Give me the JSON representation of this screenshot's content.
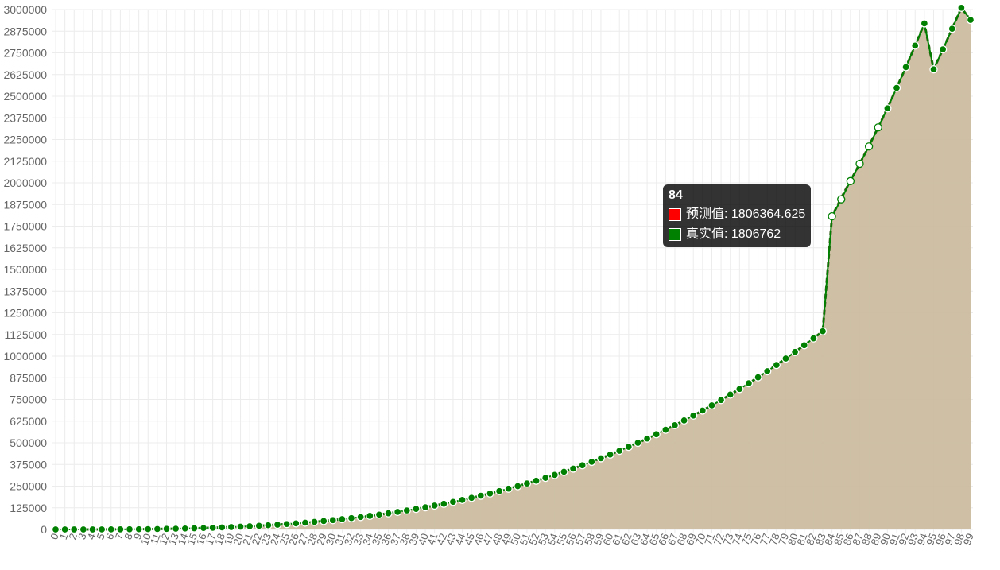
{
  "chart_data": {
    "type": "line",
    "title": "",
    "xlabel": "",
    "ylabel": "",
    "x": [
      0,
      1,
      2,
      3,
      4,
      5,
      6,
      7,
      8,
      9,
      10,
      11,
      12,
      13,
      14,
      15,
      16,
      17,
      18,
      19,
      20,
      21,
      22,
      23,
      24,
      25,
      26,
      27,
      28,
      29,
      30,
      31,
      32,
      33,
      34,
      35,
      36,
      37,
      38,
      39,
      40,
      41,
      42,
      43,
      44,
      45,
      46,
      47,
      48,
      49,
      50,
      51,
      52,
      53,
      54,
      55,
      56,
      57,
      58,
      59,
      60,
      61,
      62,
      63,
      64,
      65,
      66,
      67,
      68,
      69,
      70,
      71,
      72,
      73,
      74,
      75,
      76,
      77,
      78,
      79,
      80,
      81,
      82,
      83,
      84,
      85,
      86,
      87,
      88,
      89,
      90,
      91,
      92,
      93,
      94,
      95,
      96,
      97,
      98,
      99
    ],
    "ylim": [
      0,
      3000000
    ],
    "yticks": [
      0,
      125000,
      250000,
      375000,
      500000,
      625000,
      750000,
      875000,
      1000000,
      1125000,
      1250000,
      1375000,
      1500000,
      1625000,
      1750000,
      1875000,
      2000000,
      2125000,
      2250000,
      2375000,
      2500000,
      2625000,
      2750000,
      2875000,
      3000000
    ],
    "grid": true,
    "series": [
      {
        "name": "预测值",
        "color": "#ff0000",
        "area_color": "#ccbda0",
        "line_color": "#3a5a1a",
        "values": [
          0,
          3,
          16,
          54,
          128,
          250,
          432,
          686,
          1024,
          1458,
          2000,
          2662,
          3456,
          4394,
          5488,
          6750,
          8192,
          9826,
          11664,
          13718,
          16000,
          18522,
          21296,
          24334,
          27648,
          31250,
          35152,
          39366,
          43904,
          48778,
          54000,
          59582,
          65536,
          71874,
          78608,
          85750,
          93312,
          101306,
          109744,
          118638,
          128000,
          137842,
          148176,
          159014,
          170368,
          182250,
          194672,
          207646,
          221184,
          235298,
          250000,
          265302,
          281216,
          297754,
          314928,
          332750,
          351232,
          370386,
          390224,
          410758,
          432000,
          453962,
          476656,
          500094,
          524288,
          549250,
          574992,
          601526,
          628864,
          657018,
          686000,
          715822,
          746496,
          778034,
          810448,
          843750,
          877952,
          913066,
          949104,
          986078,
          1024000,
          1062882,
          1102736,
          1143574,
          1806364.625,
          1913000,
          2012000,
          2110000,
          2213000,
          2320000,
          2432000,
          2548000,
          2668000,
          2792000,
          2920000,
          2655000,
          2770000,
          2889000,
          3010000,
          2940000
        ]
      },
      {
        "name": "真实值",
        "color": "#008000",
        "values": [
          0,
          3,
          16,
          54,
          128,
          250,
          432,
          686,
          1024,
          1458,
          2000,
          2662,
          3456,
          4394,
          5488,
          6750,
          8192,
          9826,
          11664,
          13718,
          16000,
          18522,
          21296,
          24334,
          27648,
          31250,
          35152,
          39366,
          43904,
          48778,
          54000,
          59582,
          65536,
          71874,
          78608,
          85750,
          93312,
          101306,
          109744,
          118638,
          128000,
          137842,
          148176,
          159014,
          170368,
          182250,
          194672,
          207646,
          221184,
          235298,
          250000,
          265302,
          281216,
          297754,
          314928,
          332750,
          351232,
          370386,
          390224,
          410758,
          432000,
          453962,
          476656,
          500094,
          524288,
          549250,
          574992,
          601526,
          628864,
          657018,
          686000,
          715822,
          746496,
          778034,
          810448,
          843750,
          877952,
          913066,
          949104,
          986078,
          1024000,
          1062882,
          1102736,
          1143574,
          1806762,
          1905000,
          2010000,
          2110000,
          2210000,
          2320000,
          2430000,
          2548000,
          2668000,
          2792000,
          2920000,
          2655000,
          2770000,
          2889000,
          3010000,
          2940000
        ]
      }
    ],
    "tooltip": {
      "title": "84",
      "rows": [
        {
          "label": "预测值: 1806364.625",
          "color": "#ff0000"
        },
        {
          "label": "真实值: 1806762",
          "color": "#008000"
        }
      ]
    }
  }
}
